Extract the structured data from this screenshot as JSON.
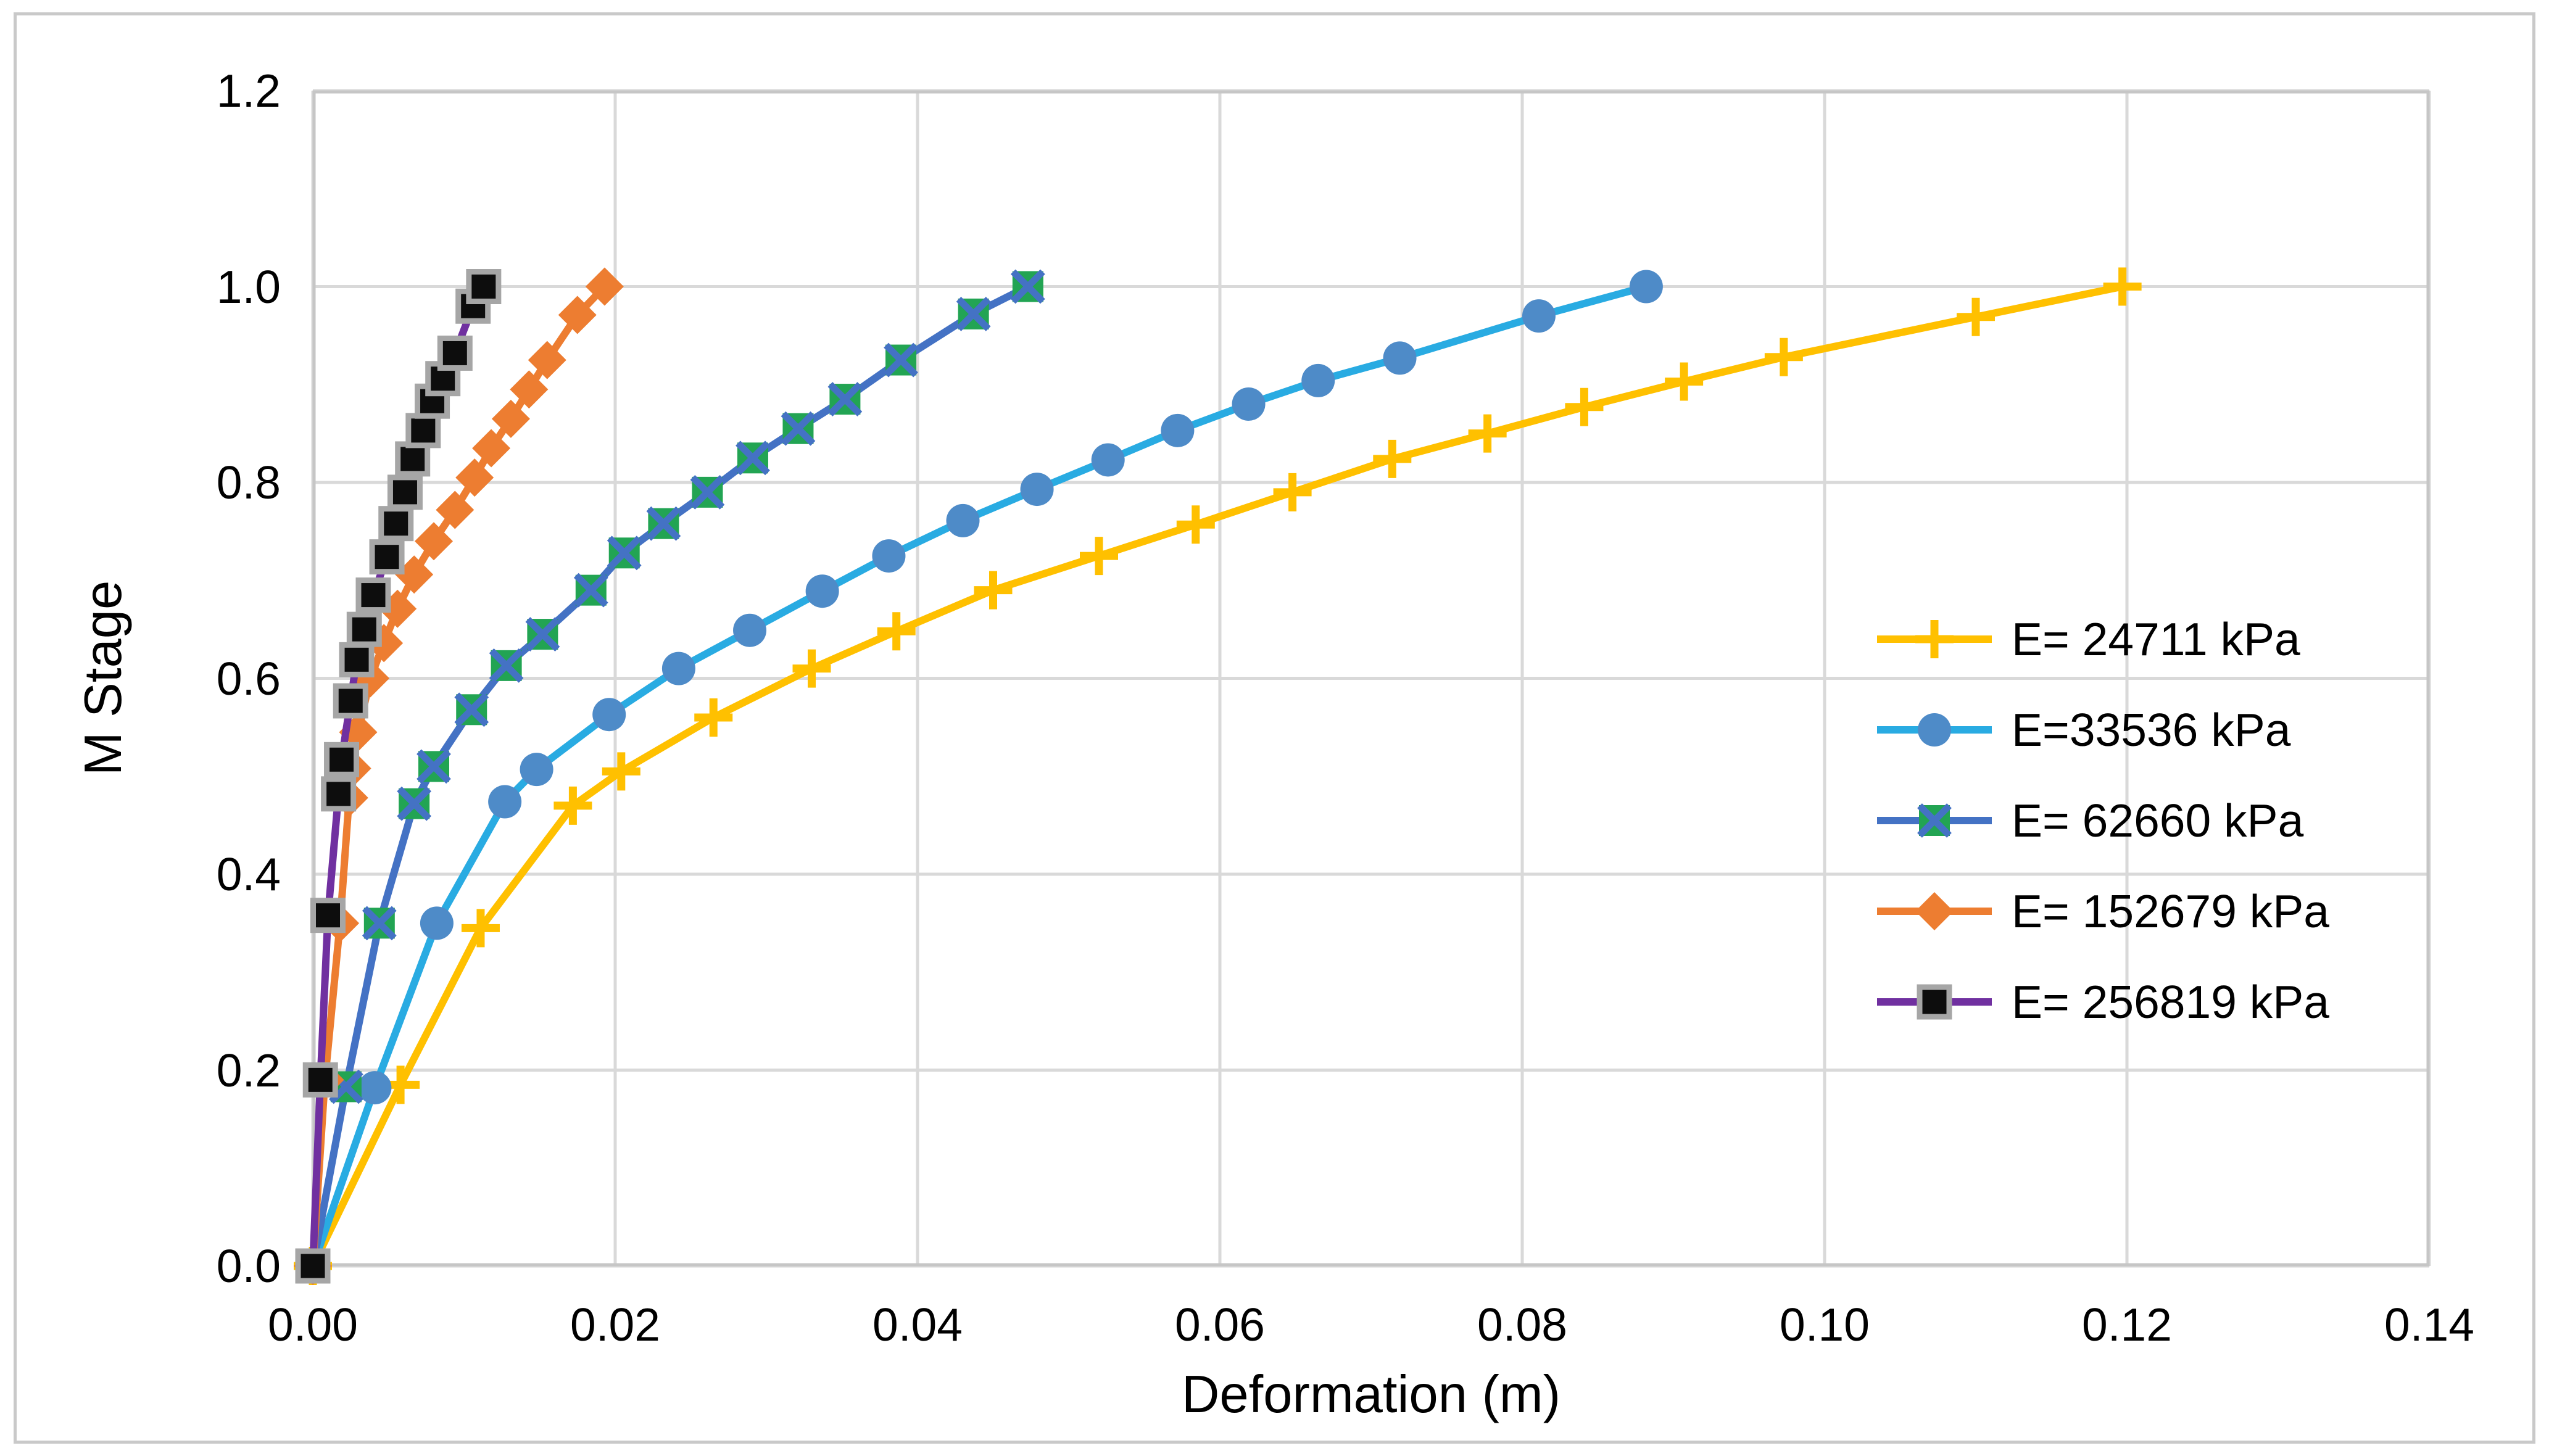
{
  "figure": {
    "background": "#ffffff",
    "border_color": "#c9c9c9",
    "grid_color": "#d9d9d9",
    "axis_box_color": "#c6c6c6",
    "text_color": "#000000"
  },
  "chart_data": {
    "type": "line",
    "title": "",
    "xlabel": "Deformation (m)",
    "ylabel": "M Stage",
    "xlim": [
      0,
      0.14
    ],
    "ylim": [
      0,
      1.2
    ],
    "x_ticks": [
      "0.00",
      "0.02",
      "0.04",
      "0.06",
      "0.08",
      "0.10",
      "0.12",
      "0.14"
    ],
    "y_ticks": [
      "0.0",
      "0.2",
      "0.4",
      "0.6",
      "0.8",
      "1.0",
      "1.2"
    ],
    "grid": true,
    "legend_position": "right-middle",
    "series": [
      {
        "name": "E= 24711 kPa",
        "color": "#FFC000",
        "marker": "plus",
        "marker_color": "#FFC000",
        "points": [
          [
            0,
            0
          ],
          [
            0.0058,
            0.185
          ],
          [
            0.0111,
            0.345
          ],
          [
            0.0172,
            0.47
          ],
          [
            0.0204,
            0.505
          ],
          [
            0.0265,
            0.56
          ],
          [
            0.033,
            0.61
          ],
          [
            0.0386,
            0.648
          ],
          [
            0.045,
            0.69
          ],
          [
            0.052,
            0.725
          ],
          [
            0.0584,
            0.757
          ],
          [
            0.0648,
            0.79
          ],
          [
            0.0714,
            0.824
          ],
          [
            0.0777,
            0.85
          ],
          [
            0.0841,
            0.877
          ],
          [
            0.0907,
            0.903
          ],
          [
            0.0973,
            0.928
          ],
          [
            0.11,
            0.969
          ],
          [
            0.1197,
            1.0
          ]
        ]
      },
      {
        "name": "E=33536 kPa",
        "color": "#29ABE2",
        "marker": "circle",
        "marker_color": "#4E8BC8",
        "points": [
          [
            0,
            0
          ],
          [
            0.0041,
            0.182
          ],
          [
            0.0082,
            0.35
          ],
          [
            0.0127,
            0.474
          ],
          [
            0.0148,
            0.507
          ],
          [
            0.0196,
            0.563
          ],
          [
            0.0242,
            0.61
          ],
          [
            0.0289,
            0.649
          ],
          [
            0.0337,
            0.689
          ],
          [
            0.0381,
            0.725
          ],
          [
            0.043,
            0.761
          ],
          [
            0.0479,
            0.793
          ],
          [
            0.0526,
            0.823
          ],
          [
            0.0572,
            0.853
          ],
          [
            0.0619,
            0.88
          ],
          [
            0.0665,
            0.904
          ],
          [
            0.0719,
            0.927
          ],
          [
            0.0811,
            0.97
          ],
          [
            0.0882,
            1.0
          ]
        ]
      },
      {
        "name": "E= 62660 kPa",
        "color": "#4472C4",
        "marker": "square-x",
        "marker_color": "#22A453",
        "marker_cross_color": "#4472C4",
        "points": [
          [
            0,
            0
          ],
          [
            0.0022,
            0.183
          ],
          [
            0.0044,
            0.35
          ],
          [
            0.0067,
            0.472
          ],
          [
            0.008,
            0.51
          ],
          [
            0.0105,
            0.568
          ],
          [
            0.0128,
            0.613
          ],
          [
            0.0152,
            0.645
          ],
          [
            0.0184,
            0.69
          ],
          [
            0.0206,
            0.728
          ],
          [
            0.0232,
            0.758
          ],
          [
            0.0261,
            0.79
          ],
          [
            0.0291,
            0.825
          ],
          [
            0.0321,
            0.855
          ],
          [
            0.0352,
            0.885
          ],
          [
            0.0389,
            0.925
          ],
          [
            0.0437,
            0.972
          ],
          [
            0.0473,
            1.0
          ]
        ]
      },
      {
        "name": "E= 152679 kPa",
        "color": "#ED7D31",
        "marker": "diamond",
        "marker_color": "#ED7D31",
        "points": [
          [
            0,
            0
          ],
          [
            0.0008,
            0.19
          ],
          [
            0.0018,
            0.35
          ],
          [
            0.0024,
            0.478
          ],
          [
            0.0026,
            0.508
          ],
          [
            0.003,
            0.545
          ],
          [
            0.0038,
            0.6
          ],
          [
            0.0047,
            0.636
          ],
          [
            0.0056,
            0.671
          ],
          [
            0.0067,
            0.706
          ],
          [
            0.008,
            0.74
          ],
          [
            0.0094,
            0.772
          ],
          [
            0.0107,
            0.805
          ],
          [
            0.0118,
            0.835
          ],
          [
            0.0131,
            0.865
          ],
          [
            0.0143,
            0.895
          ],
          [
            0.0155,
            0.925
          ],
          [
            0.0175,
            0.971
          ],
          [
            0.0193,
            1.0
          ]
        ]
      },
      {
        "name": "E= 256819 kPa",
        "color": "#7030A0",
        "marker": "square",
        "marker_color": "#0D0D0D",
        "marker_border_color": "#A6A6A6",
        "points": [
          [
            0,
            0
          ],
          [
            0.0005,
            0.19
          ],
          [
            0.001,
            0.358
          ],
          [
            0.0017,
            0.482
          ],
          [
            0.0019,
            0.517
          ],
          [
            0.0025,
            0.577
          ],
          [
            0.0029,
            0.619
          ],
          [
            0.0034,
            0.65
          ],
          [
            0.004,
            0.685
          ],
          [
            0.0049,
            0.724
          ],
          [
            0.0055,
            0.758
          ],
          [
            0.0061,
            0.79
          ],
          [
            0.0066,
            0.824
          ],
          [
            0.0073,
            0.853
          ],
          [
            0.0079,
            0.883
          ],
          [
            0.0086,
            0.906
          ],
          [
            0.0094,
            0.932
          ],
          [
            0.0106,
            0.98
          ],
          [
            0.0113,
            1.0
          ]
        ]
      }
    ]
  }
}
